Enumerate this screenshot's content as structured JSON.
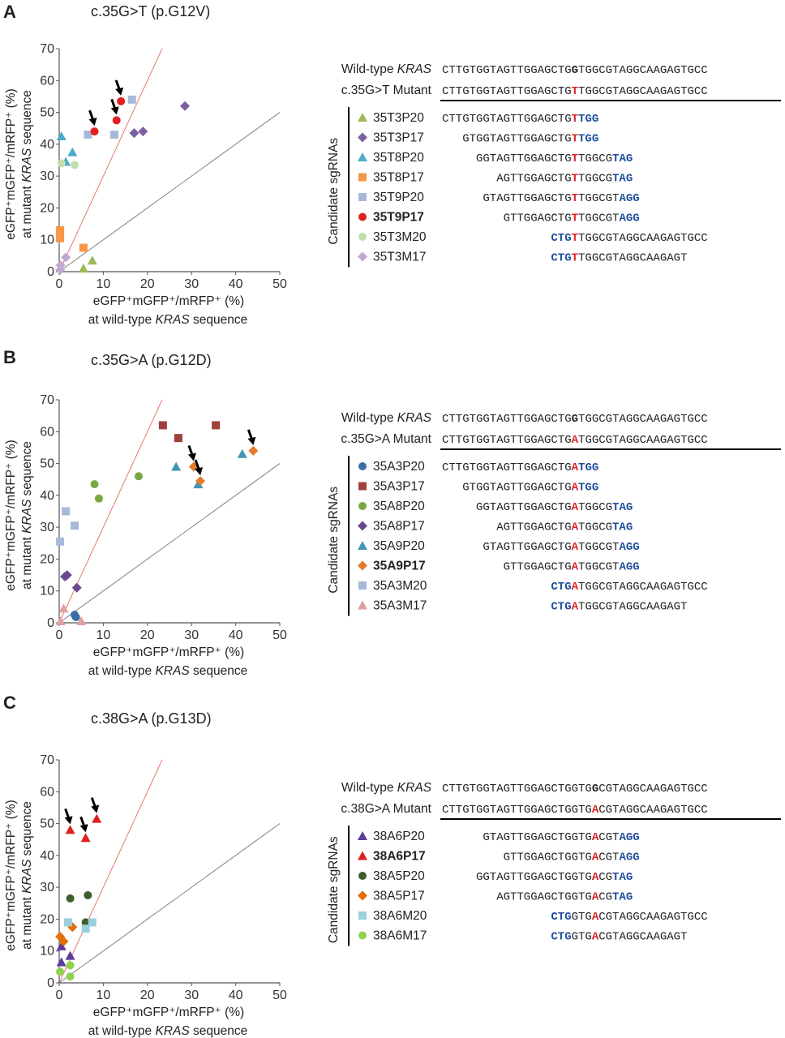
{
  "panels": [
    {
      "letter": "A",
      "title": "c.35G>T (p.G12V)",
      "chart_data": {
        "type": "scatter",
        "xlabel_line1": "eGFP⁺mGFP⁺/mRFP⁺ (%)",
        "xlabel_line2_pre": "at wild-type ",
        "xlabel_line2_gene": "KRAS",
        "xlabel_line2_post": " sequence",
        "ylabel_line1": "eGFP⁺mGFP⁺/mRFP⁺ (%)",
        "ylabel_line2_pre": "at mutant ",
        "ylabel_line2_gene": "KRAS",
        "ylabel_line2_post": " sequence",
        "xlim": [
          0,
          50
        ],
        "ylim": [
          0,
          70
        ],
        "xticks": [
          "0",
          "10",
          "20",
          "30",
          "40",
          "50"
        ],
        "yticks": [
          "0",
          "10",
          "20",
          "30",
          "40",
          "50",
          "60",
          "70"
        ],
        "reference_lines": [
          {
            "slope": 3,
            "color": "#e8786e"
          },
          {
            "slope": 1,
            "color": "#808080"
          }
        ],
        "series": [
          {
            "name": "35T3P20",
            "marker": "triangle",
            "color": "#9bbb59",
            "points": [
              [
                7.5,
                3.5
              ],
              [
                5.5,
                1
              ]
            ]
          },
          {
            "name": "35T3P17",
            "marker": "diamond",
            "color": "#7e5fa0",
            "points": [
              [
                28.5,
                52
              ],
              [
                19,
                44
              ],
              [
                17,
                43.5
              ]
            ]
          },
          {
            "name": "35T8P20",
            "marker": "triangle",
            "color": "#4bacc6",
            "points": [
              [
                0.5,
                42.5
              ],
              [
                3,
                37.5
              ],
              [
                1.5,
                34.5
              ]
            ]
          },
          {
            "name": "35T8P17",
            "marker": "square",
            "color": "#f79646",
            "points": [
              [
                0.2,
                13
              ],
              [
                0.2,
                10.5
              ],
              [
                5.5,
                7.5
              ]
            ]
          },
          {
            "name": "35T9P20",
            "marker": "square",
            "color": "#a7b9d8",
            "points": [
              [
                16.5,
                54
              ],
              [
                6.5,
                43
              ],
              [
                12.5,
                43
              ]
            ]
          },
          {
            "name": "35T9P17",
            "marker": "circle",
            "color": "#e02020",
            "points": [
              [
                14,
                53.5
              ],
              [
                8,
                44
              ],
              [
                13,
                47.5
              ]
            ]
          },
          {
            "name": "35T3M20",
            "marker": "circle",
            "color": "#c3deae",
            "points": [
              [
                0.5,
                34
              ],
              [
                3.5,
                33.5
              ]
            ]
          },
          {
            "name": "35T3M17",
            "marker": "diamond",
            "color": "#c0a8d0",
            "points": [
              [
                1.5,
                4.5
              ],
              [
                0.3,
                2
              ],
              [
                0.2,
                0.5
              ]
            ]
          }
        ],
        "arrows": [
          [
            14,
            53.5
          ],
          [
            8,
            44
          ],
          [
            13,
            47.5
          ]
        ]
      },
      "seq": {
        "wt_label_pre": "Wild-type ",
        "wt_label_gene": "KRAS",
        "mut_label": "c.35G>T Mutant",
        "wt_seq": [
          "CTTGTGGTAGTTGGAGCTG",
          "G",
          "TGGCGTAGGCAAGAGTGCC"
        ],
        "mut_seq": [
          "CTTGTGGTAGTTGGAGCTG",
          "T",
          "TGGCGTAGGCAAGAGTGCC"
        ],
        "candidates_label": "Candidate sgRNAs",
        "guides": [
          {
            "name": "35T3P20",
            "bold": false,
            "pre": "CTTGTGGTAGTTGGAGCTG",
            "mut": "T",
            "post": "",
            "pam": "TGG",
            "tail": ""
          },
          {
            "name": "35T3P17",
            "bold": false,
            "pre": "GTGGTAGTTGGAGCTG",
            "mut": "T",
            "post": "",
            "pam": "TGG",
            "tail": ""
          },
          {
            "name": "35T8P20",
            "bold": false,
            "pre": "GGTAGTTGGAGCTG",
            "mut": "T",
            "post": "TGGCG",
            "pam": "TAG",
            "tail": ""
          },
          {
            "name": "35T8P17",
            "bold": false,
            "pre": "AGTTGGAGCTG",
            "mut": "T",
            "post": "TGGCG",
            "pam": "TAG",
            "tail": ""
          },
          {
            "name": "35T9P20",
            "bold": false,
            "pre": "GTAGTTGGAGCTG",
            "mut": "T",
            "post": "TGGCGT",
            "pam": "AGG",
            "tail": ""
          },
          {
            "name": "35T9P17",
            "bold": true,
            "pre": "GTTGGAGCTG",
            "mut": "T",
            "post": "TGGCGT",
            "pam": "AGG",
            "tail": ""
          },
          {
            "name": "35T3M20",
            "bold": false,
            "pre": "",
            "pam": "CTG",
            "mut": "T",
            "post": "",
            "tail": "TGGCGTAGGCAAGAGTGCC",
            "pamFirst": true
          },
          {
            "name": "35T3M17",
            "bold": false,
            "pre": "",
            "pam": "CTG",
            "mut": "T",
            "post": "",
            "tail": "TGGCGTAGGCAAGAGT",
            "pamFirst": true
          }
        ]
      }
    },
    {
      "letter": "B",
      "title": "c.35G>A (p.G12D)",
      "chart_data": {
        "type": "scatter",
        "xlabel_line1": "eGFP⁺mGFP⁺/mRFP⁺ (%)",
        "xlabel_line2_pre": "at wild-type ",
        "xlabel_line2_gene": "KRAS",
        "xlabel_line2_post": " sequence",
        "ylabel_line1": "eGFP⁺mGFP⁺/mRFP⁺ (%)",
        "ylabel_line2_pre": "at mutant ",
        "ylabel_line2_gene": "KRAS",
        "ylabel_line2_post": " sequence",
        "xlim": [
          0,
          50
        ],
        "ylim": [
          0,
          70
        ],
        "xticks": [
          "0",
          "10",
          "20",
          "30",
          "40",
          "50"
        ],
        "yticks": [
          "0",
          "10",
          "20",
          "30",
          "40",
          "50",
          "60",
          "70"
        ],
        "reference_lines": [
          {
            "slope": 3,
            "color": "#e8786e"
          },
          {
            "slope": 1,
            "color": "#808080"
          }
        ],
        "series": [
          {
            "name": "35A3P20",
            "marker": "circle",
            "color": "#3a6ea5",
            "points": [
              [
                3.5,
                2.5
              ],
              [
                3.8,
                1.8
              ]
            ]
          },
          {
            "name": "35A3P17",
            "marker": "square",
            "color": "#a0403a",
            "points": [
              [
                23.5,
                62
              ],
              [
                35.5,
                62
              ],
              [
                27,
                58
              ]
            ]
          },
          {
            "name": "35A8P20",
            "marker": "circle",
            "color": "#77a843",
            "points": [
              [
                8,
                43.5
              ],
              [
                9,
                39
              ],
              [
                18,
                46
              ]
            ]
          },
          {
            "name": "35A8P17",
            "marker": "diamond",
            "color": "#6b4a8c",
            "points": [
              [
                1.8,
                15
              ],
              [
                1.3,
                14.5
              ],
              [
                4,
                11
              ]
            ]
          },
          {
            "name": "35A9P20",
            "marker": "triangle",
            "color": "#3f97b5",
            "points": [
              [
                26.5,
                49
              ],
              [
                41.5,
                53
              ],
              [
                31.5,
                43.5
              ]
            ]
          },
          {
            "name": "35A9P17",
            "marker": "diamond",
            "color": "#e47c2e",
            "points": [
              [
                44,
                54
              ],
              [
                30.5,
                49
              ],
              [
                32,
                44.5
              ]
            ]
          },
          {
            "name": "35A3M20",
            "marker": "square",
            "color": "#a7b9d8",
            "points": [
              [
                1.5,
                35
              ],
              [
                3.5,
                30.5
              ],
              [
                0.2,
                25.5
              ]
            ]
          },
          {
            "name": "35A3M17",
            "marker": "triangle",
            "color": "#e0a0a0",
            "points": [
              [
                1,
                4.5
              ],
              [
                5,
                0.5
              ],
              [
                0.3,
                0.5
              ]
            ]
          }
        ],
        "arrows": [
          [
            44,
            54
          ],
          [
            30.5,
            49
          ],
          [
            32,
            44.5
          ]
        ]
      },
      "seq": {
        "wt_label_pre": "Wild-type ",
        "wt_label_gene": "KRAS",
        "mut_label": "c.35G>A Mutant",
        "wt_seq": [
          "CTTGTGGTAGTTGGAGCTG",
          "G",
          "TGGCGTAGGCAAGAGTGCC"
        ],
        "mut_seq": [
          "CTTGTGGTAGTTGGAGCTG",
          "A",
          "TGGCGTAGGCAAGAGTGCC"
        ],
        "candidates_label": "Candidate sgRNAs",
        "guides": [
          {
            "name": "35A3P20",
            "bold": false,
            "pre": "CTTGTGGTAGTTGGAGCTG",
            "mut": "A",
            "post": "",
            "pam": "TGG",
            "tail": ""
          },
          {
            "name": "35A3P17",
            "bold": false,
            "pre": "GTGGTAGTTGGAGCTG",
            "mut": "A",
            "post": "",
            "pam": "TGG",
            "tail": ""
          },
          {
            "name": "35A8P20",
            "bold": false,
            "pre": "GGTAGTTGGAGCTG",
            "mut": "A",
            "post": "TGGCG",
            "pam": "TAG",
            "tail": ""
          },
          {
            "name": "35A8P17",
            "bold": false,
            "pre": "AGTTGGAGCTG",
            "mut": "A",
            "post": "TGGCG",
            "pam": "TAG",
            "tail": ""
          },
          {
            "name": "35A9P20",
            "bold": false,
            "pre": "GTAGTTGGAGCTG",
            "mut": "A",
            "post": "TGGCGT",
            "pam": "AGG",
            "tail": ""
          },
          {
            "name": "35A9P17",
            "bold": true,
            "pre": "GTTGGAGCTG",
            "mut": "A",
            "post": "TGGCGT",
            "pam": "AGG",
            "tail": ""
          },
          {
            "name": "35A3M20",
            "bold": false,
            "pre": "",
            "pam": "CTG",
            "mut": "A",
            "post": "",
            "tail": "TGGCGTAGGCAAGAGTGCC",
            "pamFirst": true
          },
          {
            "name": "35A3M17",
            "bold": false,
            "pre": "",
            "pam": "CTG",
            "mut": "A",
            "post": "",
            "tail": "TGGCGTAGGCAAGAGT",
            "pamFirst": true
          }
        ]
      }
    },
    {
      "letter": "C",
      "title": "c.38G>A (p.G13D)",
      "chart_data": {
        "type": "scatter",
        "xlabel_line1": "eGFP⁺mGFP⁺/mRFP⁺ (%)",
        "xlabel_line2_pre": "at wild-type ",
        "xlabel_line2_gene": "KRAS",
        "xlabel_line2_post": " sequence",
        "ylabel_line1": "eGFP⁺mGFP⁺/mRFP⁺ (%)",
        "ylabel_line2_pre": "at mutant ",
        "ylabel_line2_gene": "KRAS",
        "ylabel_line2_post": " sequence",
        "xlim": [
          0,
          50
        ],
        "ylim": [
          0,
          70
        ],
        "xticks": [
          "0",
          "10",
          "20",
          "30",
          "40",
          "50"
        ],
        "yticks": [
          "0",
          "10",
          "20",
          "30",
          "40",
          "50",
          "60",
          "70"
        ],
        "reference_lines": [
          {
            "slope": 3,
            "color": "#e8786e"
          },
          {
            "slope": 1,
            "color": "#808080"
          }
        ],
        "series": [
          {
            "name": "38A6P20",
            "marker": "triangle",
            "color": "#5b3d99",
            "points": [
              [
                0.5,
                11.5
              ],
              [
                0.5,
                6.5
              ],
              [
                2.5,
                8.5
              ]
            ]
          },
          {
            "name": "38A6P17",
            "marker": "triangle",
            "color": "#e02020",
            "points": [
              [
                2.5,
                48
              ],
              [
                6,
                45.5
              ],
              [
                8.5,
                51.5
              ]
            ]
          },
          {
            "name": "38A5P20",
            "marker": "circle",
            "color": "#3f5e2a",
            "points": [
              [
                2.5,
                26.5
              ],
              [
                6.5,
                27.5
              ],
              [
                6,
                19
              ]
            ]
          },
          {
            "name": "38A5P17",
            "marker": "diamond",
            "color": "#e46c0a",
            "points": [
              [
                0.2,
                14.5
              ],
              [
                1,
                13
              ],
              [
                3,
                17.5
              ]
            ]
          },
          {
            "name": "38A6M20",
            "marker": "square",
            "color": "#9ccfdc",
            "points": [
              [
                2,
                19
              ],
              [
                7.5,
                19
              ],
              [
                6,
                17
              ]
            ]
          },
          {
            "name": "38A6M17",
            "marker": "circle",
            "color": "#92d050",
            "points": [
              [
                0.2,
                3.5
              ],
              [
                2.5,
                2
              ],
              [
                2.5,
                5.5
              ]
            ]
          }
        ],
        "arrows": [
          [
            2.5,
            48
          ],
          [
            6,
            45.5
          ],
          [
            8.5,
            51.5
          ]
        ]
      },
      "seq": {
        "wt_label_pre": "Wild-type ",
        "wt_label_gene": "KRAS",
        "mut_label": "c.38G>A Mutant",
        "wt_seq": [
          "CTTGTGGTAGTTGGAGCTGGTG",
          "G",
          "CGTAGGCAAGAGTGCC"
        ],
        "mut_seq": [
          "CTTGTGGTAGTTGGAGCTGGTG",
          "A",
          "CGTAGGCAAGAGTGCC"
        ],
        "candidates_label": "Candidate sgRNAs",
        "guides": [
          {
            "name": "38A6P20",
            "bold": false,
            "pre": "GTAGTTGGAGCTGGTG",
            "mut": "A",
            "post": "CGT",
            "pam": "AGG",
            "tail": ""
          },
          {
            "name": "38A6P17",
            "bold": true,
            "pre": "GTTGGAGCTGGTG",
            "mut": "A",
            "post": "CGT",
            "pam": "AGG",
            "tail": ""
          },
          {
            "name": "38A5P20",
            "bold": false,
            "pre": "GGTAGTTGGAGCTGGTG",
            "mut": "A",
            "post": "CG",
            "pam": "TAG",
            "tail": ""
          },
          {
            "name": "38A5P17",
            "bold": false,
            "pre": "AGTTGGAGCTGGTG",
            "mut": "A",
            "post": "CG",
            "pam": "TAG",
            "tail": ""
          },
          {
            "name": "38A6M20",
            "bold": false,
            "pre": "",
            "pam": "CTG",
            "mut": "A",
            "post": "",
            "tail": "CGTAGGCAAGAGTGCC",
            "pamFirst": true,
            "mid": "GTG"
          },
          {
            "name": "38A6M17",
            "bold": false,
            "pre": "",
            "pam": "CTG",
            "mut": "A",
            "post": "",
            "tail": "CGTAGGCAAGAGT",
            "pamFirst": true,
            "mid": "GTG"
          }
        ]
      }
    }
  ]
}
